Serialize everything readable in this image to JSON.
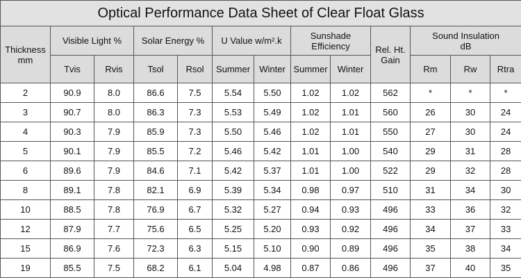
{
  "title": "Optical Performance Data Sheet of Clear Float Glass",
  "header": {
    "thickness": "Thickness\nmm",
    "groups": [
      "Visible Light %",
      "Solar Energy %",
      "U Value w/m².k",
      "Sunshade Efficiency",
      "Sound Insulation\ndB"
    ],
    "rel_ht_gain": "Rel. Ht.\nGain",
    "sub": [
      "Tvis",
      "Rvis",
      "Tsol",
      "Rsol",
      "Summer",
      "Winter",
      "Summer",
      "Winter",
      "Rm",
      "Rw",
      "Rtra"
    ]
  },
  "table": {
    "rows": [
      [
        "2",
        "90.9",
        "8.0",
        "86.6",
        "7.5",
        "5.54",
        "5.50",
        "1.02",
        "1.02",
        "562",
        "*",
        "*",
        "*"
      ],
      [
        "3",
        "90.7",
        "8.0",
        "86.3",
        "7.3",
        "5.53",
        "5.49",
        "1.02",
        "1.01",
        "560",
        "26",
        "30",
        "24"
      ],
      [
        "4",
        "90.3",
        "7.9",
        "85.9",
        "7.3",
        "5.50",
        "5.46",
        "1.02",
        "1.01",
        "550",
        "27",
        "30",
        "24"
      ],
      [
        "5",
        "90.1",
        "7.9",
        "85.5",
        "7.2",
        "5.46",
        "5.42",
        "1.01",
        "1.00",
        "540",
        "29",
        "31",
        "28"
      ],
      [
        "6",
        "89.6",
        "7.9",
        "84.6",
        "7.1",
        "5.42",
        "5.37",
        "1.01",
        "1.00",
        "522",
        "29",
        "32",
        "28"
      ],
      [
        "8",
        "89.1",
        "7.8",
        "82.1",
        "6.9",
        "5.39",
        "5.34",
        "0.98",
        "0.97",
        "510",
        "31",
        "34",
        "30"
      ],
      [
        "10",
        "88.5",
        "7.8",
        "76.9",
        "6.7",
        "5.32",
        "5.27",
        "0.94",
        "0.93",
        "496",
        "33",
        "36",
        "32"
      ],
      [
        "12",
        "87.9",
        "7.7",
        "75.6",
        "6.5",
        "5.25",
        "5.20",
        "0.93",
        "0.92",
        "496",
        "34",
        "37",
        "33"
      ],
      [
        "15",
        "86.9",
        "7.6",
        "72.3",
        "6.3",
        "5.15",
        "5.10",
        "0.90",
        "0.89",
        "496",
        "35",
        "38",
        "34"
      ],
      [
        "19",
        "85.5",
        "7.5",
        "68.2",
        "6.1",
        "5.04",
        "4.98",
        "0.87",
        "0.86",
        "496",
        "37",
        "40",
        "35"
      ]
    ]
  }
}
